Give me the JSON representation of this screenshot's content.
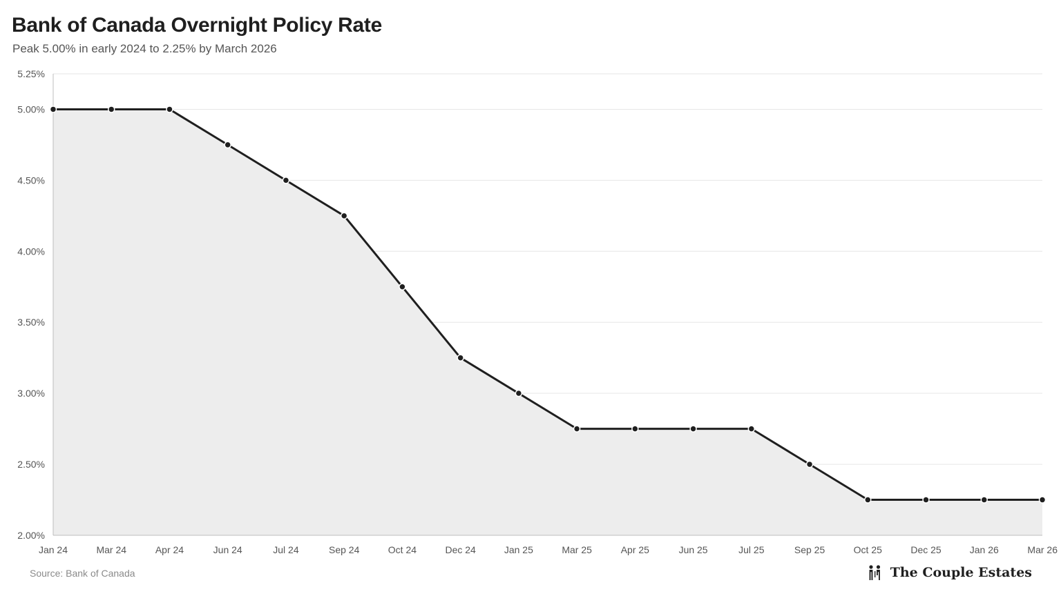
{
  "chart_data": {
    "type": "area",
    "title": "Bank of Canada Overnight Policy Rate",
    "subtitle": "Peak 5.00% in early 2024 to 2.25% by March 2026",
    "categories": [
      "Jan 24",
      "Mar 24",
      "Apr 24",
      "Jun 24",
      "Jul 24",
      "Sep 24",
      "Oct 24",
      "Dec 24",
      "Jan 25",
      "Mar 25",
      "Apr 25",
      "Jun 25",
      "Jul 25",
      "Sep 25",
      "Oct 25",
      "Dec 25",
      "Jan 26",
      "Mar 26"
    ],
    "series": [
      {
        "values": [
          5.0,
          5.0,
          5.0,
          4.75,
          4.5,
          4.25,
          3.75,
          3.25,
          3.0,
          2.75,
          2.75,
          2.75,
          2.75,
          2.5,
          2.25,
          2.25,
          2.25,
          2.25
        ]
      }
    ],
    "ylim": [
      2.0,
      5.25
    ],
    "yticks": [
      "2.00%",
      "2.50%",
      "3.00%",
      "3.50%",
      "4.00%",
      "4.50%",
      "5.00%",
      "5.25%"
    ],
    "ytick_values": [
      2.0,
      2.5,
      3.0,
      3.5,
      4.0,
      4.5,
      5.0,
      5.25
    ],
    "grid": true,
    "line_color": "#1f1f1f",
    "fill_color": "#ededed",
    "grid_color": "#e6e6e6"
  },
  "footer": {
    "source": "Source: Bank of Canada",
    "brand": "The Couple Estates",
    "brand_icon": "couple-icon"
  }
}
